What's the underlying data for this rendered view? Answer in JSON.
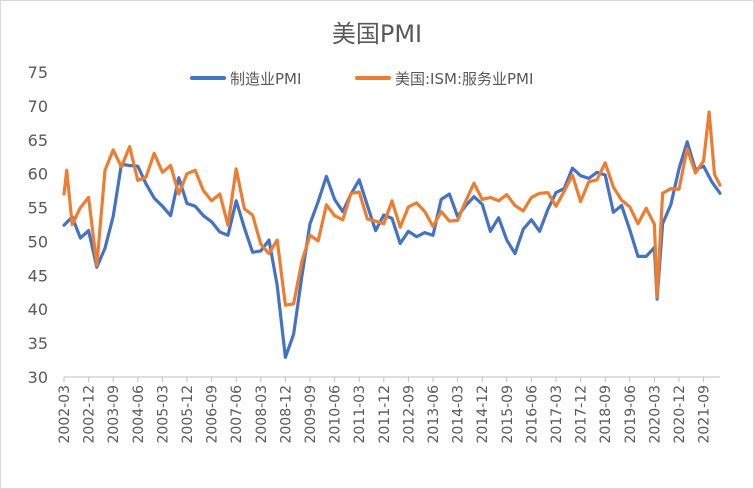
{
  "chart_data": {
    "type": "line",
    "title": "美国PMI",
    "xlabel": "",
    "ylabel": "",
    "ylim": [
      30,
      75
    ],
    "yticks": [
      30,
      35,
      40,
      45,
      50,
      55,
      60,
      65,
      70,
      75
    ],
    "grid": false,
    "legend_position": "top",
    "x_start": "2002-03",
    "x_end": "2022-03",
    "xtick_labels": [
      "2002-03",
      "2002-12",
      "2003-09",
      "2004-06",
      "2005-03",
      "2005-12",
      "2006-09",
      "2007-06",
      "2008-03",
      "2008-12",
      "2009-09",
      "2010-06",
      "2011-03",
      "2011-12",
      "2012-09",
      "2013-06",
      "2014-03",
      "2014-12",
      "2015-09",
      "2016-06",
      "2017-03",
      "2017-12",
      "2018-09",
      "2019-06",
      "2020-03",
      "2020-12",
      "2021-09"
    ],
    "series": [
      {
        "name": "制造业PMI",
        "color": "#4472C4",
        "points": [
          [
            "2002-03",
            52.4
          ],
          [
            "2002-06",
            53.6
          ],
          [
            "2002-09",
            50.5
          ],
          [
            "2002-12",
            51.6
          ],
          [
            "2003-03",
            46.2
          ],
          [
            "2003-06",
            49.0
          ],
          [
            "2003-09",
            53.7
          ],
          [
            "2003-12",
            61.4
          ],
          [
            "2004-03",
            61.2
          ],
          [
            "2004-06",
            61.1
          ],
          [
            "2004-09",
            58.5
          ],
          [
            "2004-12",
            56.4
          ],
          [
            "2005-03",
            55.2
          ],
          [
            "2005-06",
            53.8
          ],
          [
            "2005-09",
            59.4
          ],
          [
            "2005-12",
            55.6
          ],
          [
            "2006-03",
            55.2
          ],
          [
            "2006-06",
            53.8
          ],
          [
            "2006-09",
            52.9
          ],
          [
            "2006-12",
            51.4
          ],
          [
            "2007-03",
            50.9
          ],
          [
            "2007-06",
            56.0
          ],
          [
            "2007-09",
            52.0
          ],
          [
            "2007-12",
            48.4
          ],
          [
            "2008-03",
            48.6
          ],
          [
            "2008-06",
            50.2
          ],
          [
            "2008-09",
            43.5
          ],
          [
            "2008-12",
            32.9
          ],
          [
            "2009-03",
            36.3
          ],
          [
            "2009-06",
            44.8
          ],
          [
            "2009-09",
            52.6
          ],
          [
            "2009-12",
            55.9
          ],
          [
            "2010-03",
            59.6
          ],
          [
            "2010-06",
            56.2
          ],
          [
            "2010-09",
            54.4
          ],
          [
            "2010-12",
            57.0
          ],
          [
            "2011-03",
            59.1
          ],
          [
            "2011-06",
            55.3
          ],
          [
            "2011-09",
            51.6
          ],
          [
            "2011-12",
            53.9
          ],
          [
            "2012-03",
            53.4
          ],
          [
            "2012-06",
            49.7
          ],
          [
            "2012-09",
            51.5
          ],
          [
            "2012-12",
            50.7
          ],
          [
            "2013-03",
            51.3
          ],
          [
            "2013-06",
            50.9
          ],
          [
            "2013-09",
            56.2
          ],
          [
            "2013-12",
            57.0
          ],
          [
            "2014-03",
            53.7
          ],
          [
            "2014-06",
            55.3
          ],
          [
            "2014-09",
            56.6
          ],
          [
            "2014-12",
            55.5
          ],
          [
            "2015-03",
            51.5
          ],
          [
            "2015-06",
            53.5
          ],
          [
            "2015-09",
            50.2
          ],
          [
            "2015-12",
            48.2
          ],
          [
            "2016-03",
            51.8
          ],
          [
            "2016-06",
            53.2
          ],
          [
            "2016-09",
            51.5
          ],
          [
            "2016-12",
            54.7
          ],
          [
            "2017-03",
            57.2
          ],
          [
            "2017-06",
            57.8
          ],
          [
            "2017-09",
            60.8
          ],
          [
            "2017-12",
            59.7
          ],
          [
            "2018-03",
            59.3
          ],
          [
            "2018-06",
            60.2
          ],
          [
            "2018-09",
            59.8
          ],
          [
            "2018-12",
            54.3
          ],
          [
            "2019-03",
            55.3
          ],
          [
            "2019-06",
            51.7
          ],
          [
            "2019-09",
            47.8
          ],
          [
            "2019-12",
            47.8
          ],
          [
            "2020-03",
            49.1
          ],
          [
            "2020-04",
            41.5
          ],
          [
            "2020-06",
            52.6
          ],
          [
            "2020-09",
            55.4
          ],
          [
            "2020-12",
            60.7
          ],
          [
            "2021-03",
            64.7
          ],
          [
            "2021-06",
            60.6
          ],
          [
            "2021-09",
            61.1
          ],
          [
            "2021-12",
            58.8
          ],
          [
            "2022-03",
            57.1
          ]
        ]
      },
      {
        "name": "美国:ISM:服务业PMI",
        "color": "#ED7D31",
        "points": [
          [
            "2002-03",
            57.0
          ],
          [
            "2002-04",
            60.5
          ],
          [
            "2002-06",
            52.5
          ],
          [
            "2002-09",
            55.0
          ],
          [
            "2002-12",
            56.5
          ],
          [
            "2003-03",
            46.5
          ],
          [
            "2003-06",
            60.5
          ],
          [
            "2003-09",
            63.5
          ],
          [
            "2003-12",
            61.0
          ],
          [
            "2004-03",
            64.0
          ],
          [
            "2004-06",
            59.0
          ],
          [
            "2004-09",
            59.5
          ],
          [
            "2004-12",
            63.0
          ],
          [
            "2005-03",
            60.2
          ],
          [
            "2005-06",
            61.2
          ],
          [
            "2005-09",
            57.0
          ],
          [
            "2005-12",
            60.0
          ],
          [
            "2006-03",
            60.5
          ],
          [
            "2006-06",
            57.5
          ],
          [
            "2006-09",
            56.0
          ],
          [
            "2006-12",
            57.0
          ],
          [
            "2007-03",
            52.4
          ],
          [
            "2007-06",
            60.7
          ],
          [
            "2007-09",
            54.8
          ],
          [
            "2007-12",
            53.9
          ],
          [
            "2008-03",
            49.6
          ],
          [
            "2008-06",
            48.2
          ],
          [
            "2008-09",
            50.2
          ],
          [
            "2008-12",
            40.6
          ],
          [
            "2009-03",
            40.8
          ],
          [
            "2009-06",
            47.0
          ],
          [
            "2009-09",
            50.9
          ],
          [
            "2009-12",
            50.1
          ],
          [
            "2010-03",
            55.4
          ],
          [
            "2010-06",
            53.8
          ],
          [
            "2010-09",
            53.2
          ],
          [
            "2010-12",
            57.1
          ],
          [
            "2011-03",
            57.3
          ],
          [
            "2011-06",
            53.3
          ],
          [
            "2011-09",
            53.0
          ],
          [
            "2011-12",
            52.6
          ],
          [
            "2012-03",
            56.0
          ],
          [
            "2012-06",
            52.1
          ],
          [
            "2012-09",
            55.1
          ],
          [
            "2012-12",
            55.7
          ],
          [
            "2013-03",
            54.4
          ],
          [
            "2013-06",
            52.2
          ],
          [
            "2013-09",
            54.4
          ],
          [
            "2013-12",
            53.0
          ],
          [
            "2014-03",
            53.1
          ],
          [
            "2014-06",
            56.0
          ],
          [
            "2014-09",
            58.6
          ],
          [
            "2014-12",
            56.2
          ],
          [
            "2015-03",
            56.5
          ],
          [
            "2015-06",
            56.0
          ],
          [
            "2015-09",
            56.9
          ],
          [
            "2015-12",
            55.3
          ],
          [
            "2016-03",
            54.5
          ],
          [
            "2016-06",
            56.5
          ],
          [
            "2016-09",
            57.1
          ],
          [
            "2016-12",
            57.2
          ],
          [
            "2017-03",
            55.2
          ],
          [
            "2017-06",
            57.4
          ],
          [
            "2017-09",
            59.8
          ],
          [
            "2017-12",
            55.9
          ],
          [
            "2018-03",
            58.8
          ],
          [
            "2018-06",
            59.1
          ],
          [
            "2018-09",
            61.6
          ],
          [
            "2018-12",
            58.0
          ],
          [
            "2019-03",
            56.1
          ],
          [
            "2019-06",
            55.1
          ],
          [
            "2019-09",
            52.6
          ],
          [
            "2019-12",
            54.9
          ],
          [
            "2020-03",
            52.5
          ],
          [
            "2020-04",
            41.8
          ],
          [
            "2020-06",
            57.1
          ],
          [
            "2020-09",
            57.8
          ],
          [
            "2020-12",
            57.7
          ],
          [
            "2021-03",
            63.7
          ],
          [
            "2021-06",
            60.1
          ],
          [
            "2021-09",
            61.9
          ],
          [
            "2021-11",
            69.1
          ],
          [
            "2022-01",
            59.9
          ],
          [
            "2022-03",
            58.3
          ]
        ]
      }
    ]
  }
}
